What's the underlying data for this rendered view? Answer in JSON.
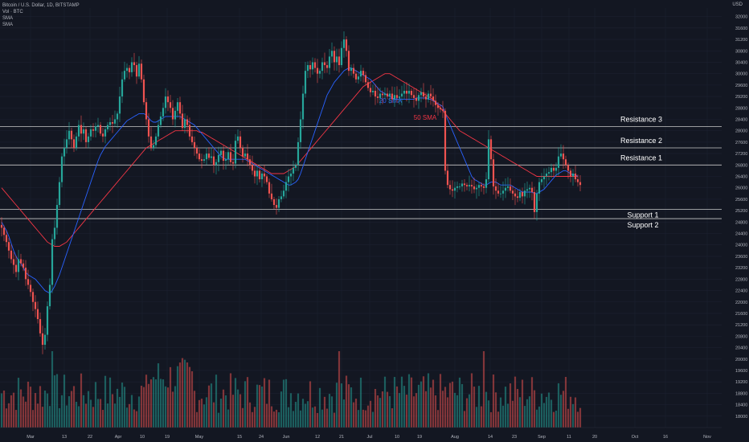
{
  "legend": {
    "symbol": "Bitcoin / U.S. Dollar, 1D, BITSTAMP",
    "volume": "Vol · BTC",
    "sma_a": "SMA",
    "sma_b": "SMA"
  },
  "currency": "USD",
  "colors": {
    "up": "#26a69a",
    "down": "#ef5350",
    "sma20": "#2962ff",
    "sma50": "#f23645",
    "bg": "#131722",
    "level": "#c8c8c8"
  },
  "chart_data": {
    "type": "candlestick",
    "x_tick_labels": [
      "Mar",
      "13",
      "22",
      "Apr",
      "10",
      "19",
      "May",
      "15",
      "24",
      "Jun",
      "12",
      "21",
      "Jul",
      "10",
      "19",
      "Aug",
      "14",
      "23",
      "Sep",
      "11",
      "20",
      "Oct",
      "16",
      "Nov"
    ],
    "y_tick_labels": [
      "32000",
      "31600",
      "31200",
      "30800",
      "30400",
      "30000",
      "29600",
      "29200",
      "28800",
      "28400",
      "28000",
      "27600",
      "27200",
      "26800",
      "26400",
      "26000",
      "25600",
      "25200",
      "24800",
      "24400",
      "24000",
      "23600",
      "23200",
      "22800",
      "22400",
      "22000",
      "21600",
      "21200",
      "20800",
      "20400",
      "20000",
      "19600",
      "19200",
      "18800",
      "18400",
      "18000"
    ],
    "ylim": [
      17600,
      32300
    ],
    "levels": [
      {
        "name": "Resistance 3",
        "price": 28142,
        "tag": "28142"
      },
      {
        "name": "Resistance 2",
        "price": 27400,
        "tag": "27400"
      },
      {
        "name": "Resistance 1",
        "price": 26800,
        "tag": "26800"
      },
      {
        "name": "Support 1",
        "price": 25250,
        "tag": "25250"
      },
      {
        "name": "Support 2",
        "price": 24920,
        "tag": "24920"
      }
    ],
    "sma_labels": [
      {
        "text": "20 SMA",
        "series": "sma20"
      },
      {
        "text": "50 SMA",
        "series": "sma50"
      }
    ],
    "closes": [
      24600,
      24350,
      24100,
      23800,
      23500,
      23300,
      23050,
      23500,
      23350,
      23200,
      22800,
      22600,
      22350,
      22000,
      21750,
      21400,
      20900,
      20500,
      20850,
      21850,
      22600,
      24200,
      24600,
      25400,
      26200,
      27100,
      27400,
      27700,
      28000,
      27700,
      27400,
      27800,
      28200,
      27900,
      28050,
      27600,
      27800,
      28050,
      28000,
      28150,
      28200,
      27900,
      27800,
      28050,
      28200,
      28300,
      28250,
      28400,
      28600,
      29200,
      29800,
      30100,
      30200,
      30050,
      30400,
      30300,
      29900,
      30350,
      29800,
      29000,
      28400,
      27800,
      27400,
      27500,
      27800,
      28200,
      28500,
      28800,
      29200,
      29000,
      28800,
      28400,
      28700,
      29000,
      28600,
      28100,
      28400,
      28200,
      27800,
      27600,
      27400,
      27200,
      27000,
      26950,
      27000,
      27200,
      27050,
      27100,
      26800,
      26900,
      27150,
      27300,
      26950,
      27000,
      27250,
      26900,
      26850,
      27650,
      27800,
      27400,
      27100,
      27200,
      27000,
      26800,
      26600,
      26400,
      26600,
      26300,
      26500,
      26400,
      26200,
      25800,
      25600,
      25400,
      25300,
      25600,
      25700,
      25900,
      26200,
      26400,
      26500,
      26700,
      26800,
      27600,
      28400,
      29300,
      30100,
      30300,
      30150,
      30400,
      30200,
      30000,
      30100,
      30400,
      30300,
      30200,
      30600,
      30800,
      30400,
      30600,
      30300,
      30900,
      31200,
      30800,
      30100,
      30200,
      30000,
      29800,
      29900,
      30100,
      29950,
      29700,
      29500,
      29350,
      29400,
      29200,
      29150,
      29300,
      29250,
      29300,
      29200,
      29300,
      29100,
      29250,
      29150,
      29200,
      29300,
      29400,
      29300,
      29400,
      29250,
      29150,
      29050,
      29250,
      29350,
      29200,
      29100,
      29300,
      29200,
      29050,
      28900,
      28800,
      28750,
      28700,
      26600,
      26100,
      25950,
      25900,
      26000,
      26050,
      26050,
      26150,
      26100,
      26050,
      26100,
      26050,
      25950,
      26000,
      26100,
      26050,
      26000,
      26300,
      27700,
      27000,
      26050,
      25900,
      25800,
      25800,
      25900,
      26000,
      26050,
      25900,
      25800,
      25700,
      25650,
      25850,
      25700,
      25900,
      25950,
      26000,
      25850,
      25150,
      25800,
      26200,
      26300,
      26400,
      26500,
      26550,
      26700,
      26600,
      26700,
      27100,
      27200,
      27000,
      26800,
      26600,
      26400,
      26500,
      26300,
      26200,
      26100
    ],
    "sma20": [
      24800,
      24650,
      24500,
      24300,
      24050,
      23800,
      23600,
      23450,
      23350,
      23200,
      23050,
      22950,
      22900,
      22850,
      22800,
      22700,
      22600,
      22500,
      22400,
      22350,
      22300,
      22400,
      22550,
      22750,
      22950,
      23200,
      23450,
      23700,
      23950,
      24200,
      24450,
      24700,
      24950,
      25200,
      25450,
      25700,
      25950,
      26200,
      26450,
      26700,
      26950,
      27150,
      27300,
      27450,
      27550,
      27650,
      27750,
      27850,
      27950,
      28050,
      28150,
      28250,
      28350,
      28400,
      28450,
      28500,
      28550,
      28600,
      28600,
      28600,
      28550,
      28450,
      28350,
      28300,
      28300,
      28350,
      28400,
      28450,
      28500,
      28500,
      28500,
      28500,
      28500,
      28500,
      28500,
      28450,
      28400,
      28350,
      28300,
      28250,
      28200,
      28100,
      28000,
      27900,
      27800,
      27700,
      27600,
      27500,
      27400,
      27300,
      27200,
      27100,
      27050,
      27000,
      27000,
      27000,
      27000,
      27000,
      27000,
      27000,
      27000,
      27000,
      26950,
      26900,
      26850,
      26800,
      26750,
      26700,
      26650,
      26600,
      26550,
      26500,
      26450,
      26400,
      26350,
      26300,
      26250,
      26200,
      26150,
      26100,
      26100,
      26150,
      26200,
      26300,
      26500,
      26750,
      27000,
      27250,
      27500,
      27750,
      28000,
      28250,
      28500,
      28750,
      29000,
      29250,
      29400,
      29550,
      29700,
      29800,
      29900,
      30000,
      30100,
      30150,
      30200,
      30200,
      30150,
      30100,
      30050,
      30000,
      29950,
      29900,
      29850,
      29800,
      29700,
      29600,
      29500,
      29400,
      29350,
      29300,
      29250,
      29200,
      29150,
      29100,
      29100,
      29100,
      29100,
      29100,
      29100,
      29100,
      29100,
      29100,
      29150,
      29150,
      29150,
      29150,
      29150,
      29100,
      29100,
      29050,
      29000,
      28950,
      28900,
      28850,
      28600,
      28400,
      28200,
      28000,
      27800,
      27600,
      27400,
      27200,
      27000,
      26800,
      26600,
      26400,
      26300,
      26250,
      26200,
      26150,
      26100,
      26100,
      26150,
      26200,
      26200,
      26200,
      26150,
      26100,
      26100,
      26100,
      26100,
      26100,
      26050,
      26000,
      25950,
      25900,
      25850,
      25850,
      25850,
      25850,
      25850,
      25800,
      25800,
      25850,
      25900,
      25950,
      26050,
      26150,
      26250,
      26350,
      26450,
      26500,
      26550,
      26600,
      26600,
      26550,
      26500,
      26450,
      26450,
      26400
    ],
    "sma50": [
      26000,
      25900,
      25800,
      25700,
      25600,
      25500,
      25400,
      25300,
      25200,
      25100,
      25000,
      24900,
      24800,
      24700,
      24600,
      24500,
      24400,
      24300,
      24200,
      24100,
      24050,
      24000,
      23950,
      23950,
      23950,
      24000,
      24050,
      24100,
      24200,
      24300,
      24400,
      24500,
      24600,
      24700,
      24800,
      24900,
      25000,
      25100,
      25200,
      25300,
      25400,
      25500,
      25600,
      25700,
      25800,
      25900,
      26000,
      26100,
      26200,
      26300,
      26400,
      26500,
      26600,
      26700,
      26800,
      26900,
      27000,
      27100,
      27200,
      27300,
      27400,
      27450,
      27500,
      27550,
      27600,
      27650,
      27700,
      27750,
      27800,
      27850,
      27900,
      27950,
      28000,
      28000,
      28000,
      28000,
      28000,
      28000,
      28000,
      28000,
      28000,
      28000,
      27950,
      27950,
      27900,
      27850,
      27800,
      27750,
      27700,
      27650,
      27600,
      27550,
      27500,
      27450,
      27400,
      27350,
      27300,
      27250,
      27200,
      27150,
      27100,
      27050,
      27000,
      26950,
      26900,
      26850,
      26800,
      26750,
      26700,
      26650,
      26600,
      26550,
      26500,
      26500,
      26500,
      26500,
      26500,
      26500,
      26550,
      26600,
      26650,
      26700,
      26750,
      26850,
      26950,
      27050,
      27150,
      27250,
      27350,
      27450,
      27550,
      27650,
      27750,
      27850,
      27950,
      28050,
      28150,
      28250,
      28350,
      28450,
      28550,
      28650,
      28750,
      28850,
      28950,
      29050,
      29150,
      29250,
      29350,
      29450,
      29550,
      29600,
      29650,
      29700,
      29750,
      29800,
      29850,
      29900,
      29950,
      30000,
      30000,
      30000,
      29950,
      29900,
      29850,
      29800,
      29750,
      29700,
      29650,
      29600,
      29550,
      29500,
      29450,
      29400,
      29350,
      29300,
      29250,
      29200,
      29150,
      29100,
      29000,
      28900,
      28800,
      28700,
      28600,
      28500,
      28400,
      28300,
      28200,
      28100,
      28000,
      27950,
      27900,
      27850,
      27800,
      27750,
      27700,
      27650,
      27600,
      27550,
      27500,
      27450,
      27400,
      27350,
      27300,
      27250,
      27200,
      27150,
      27100,
      27050,
      27000,
      26950,
      26900,
      26850,
      26800,
      26750,
      26700,
      26650,
      26600,
      26550,
      26500,
      26450,
      26400,
      26400,
      26400,
      26400,
      26400,
      26400,
      26400,
      26400,
      26400,
      26400,
      26400,
      26400,
      26400,
      26400,
      26400,
      26400,
      26400,
      26400
    ]
  }
}
